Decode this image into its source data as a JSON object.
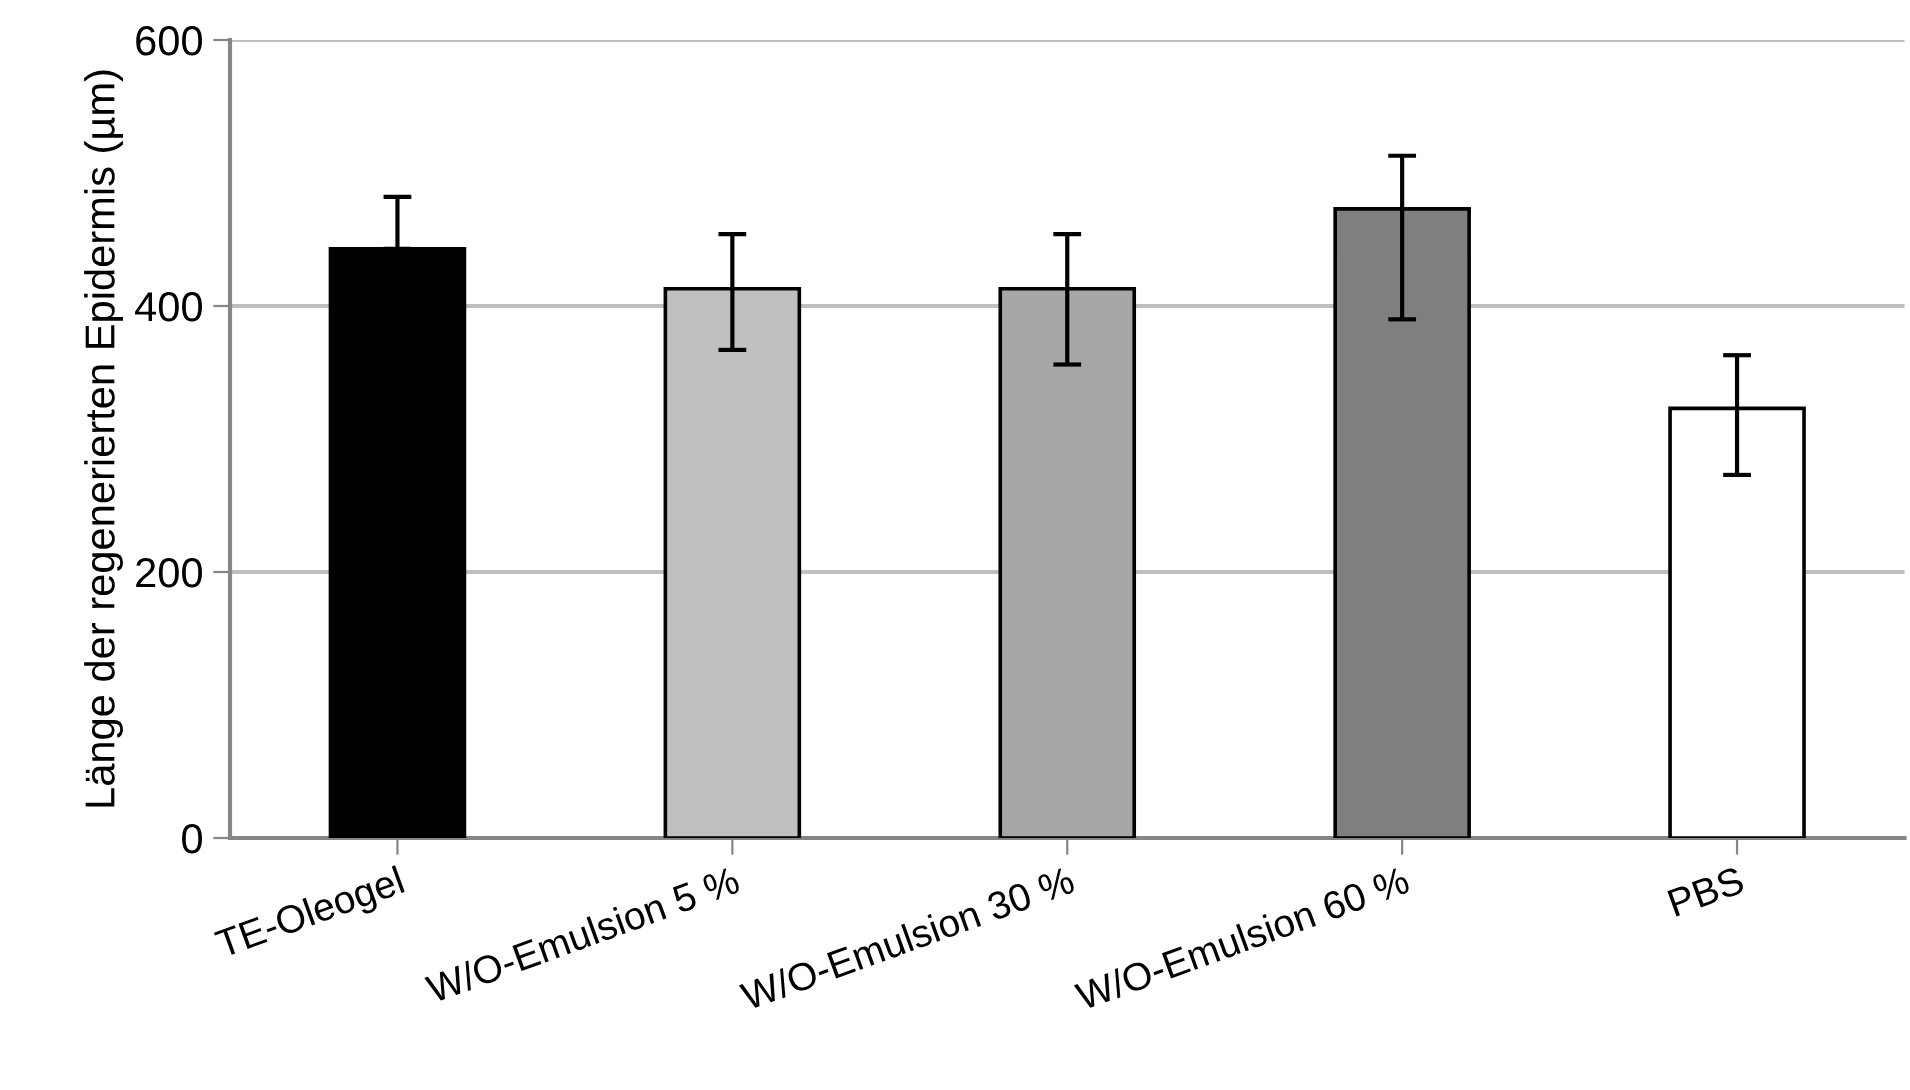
{
  "chart_data": {
    "type": "bar",
    "ylabel": "Länge der regenerierten Epidermis (µm)",
    "categories": [
      "TE-Oleogel",
      "W/O-Emulsion 5 %",
      "W/O-Emulsion 30 %",
      "W/O-Emulsion 60 %",
      "PBS"
    ],
    "values": [
      443,
      413,
      413,
      473,
      323
    ],
    "colors": [
      "#000000",
      "#bfbfbf",
      "#a6a6a6",
      "#7f7f7f",
      "#ffffff"
    ],
    "errors": [
      [
        443,
        482
      ],
      [
        367,
        454
      ],
      [
        356,
        454
      ],
      [
        390,
        513
      ],
      [
        273,
        363
      ]
    ],
    "ylim": [
      0,
      600
    ],
    "yticks": [
      0,
      200,
      400,
      600
    ],
    "grid": "y"
  }
}
